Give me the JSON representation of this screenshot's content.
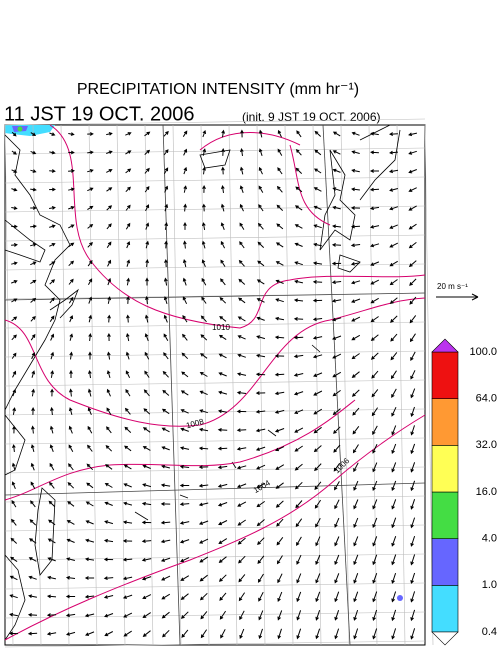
{
  "header": {
    "title": "PRECIPITATION INTENSITY (mm hr⁻¹)",
    "valid_time": "11 JST 19 OCT. 2006",
    "init_time": "(init. 9 JST 19 OCT. 2006)"
  },
  "vector_legend": {
    "label": "20 m s⁻¹"
  },
  "contours": {
    "labels": [
      "1010",
      "1008",
      "1006",
      "1004"
    ]
  },
  "colorbar": {
    "levels": [
      0.4,
      {
        "value": 1,
        "label": "1.0"
      },
      {
        "value": 4,
        "label": "4.0"
      },
      {
        "value": 16,
        "label": "16.0"
      },
      {
        "value": 32,
        "label": "32.0"
      },
      {
        "value": 64,
        "label": "64.0"
      },
      {
        "value": 100,
        "label": "100.0"
      }
    ],
    "colors": [
      "#44ddff",
      "#6666ff",
      "#44dd44",
      "#ffff55",
      "#ff9933",
      "#ee1111"
    ],
    "over_color": "#bb33ee",
    "under_color": "#ffffff"
  }
}
